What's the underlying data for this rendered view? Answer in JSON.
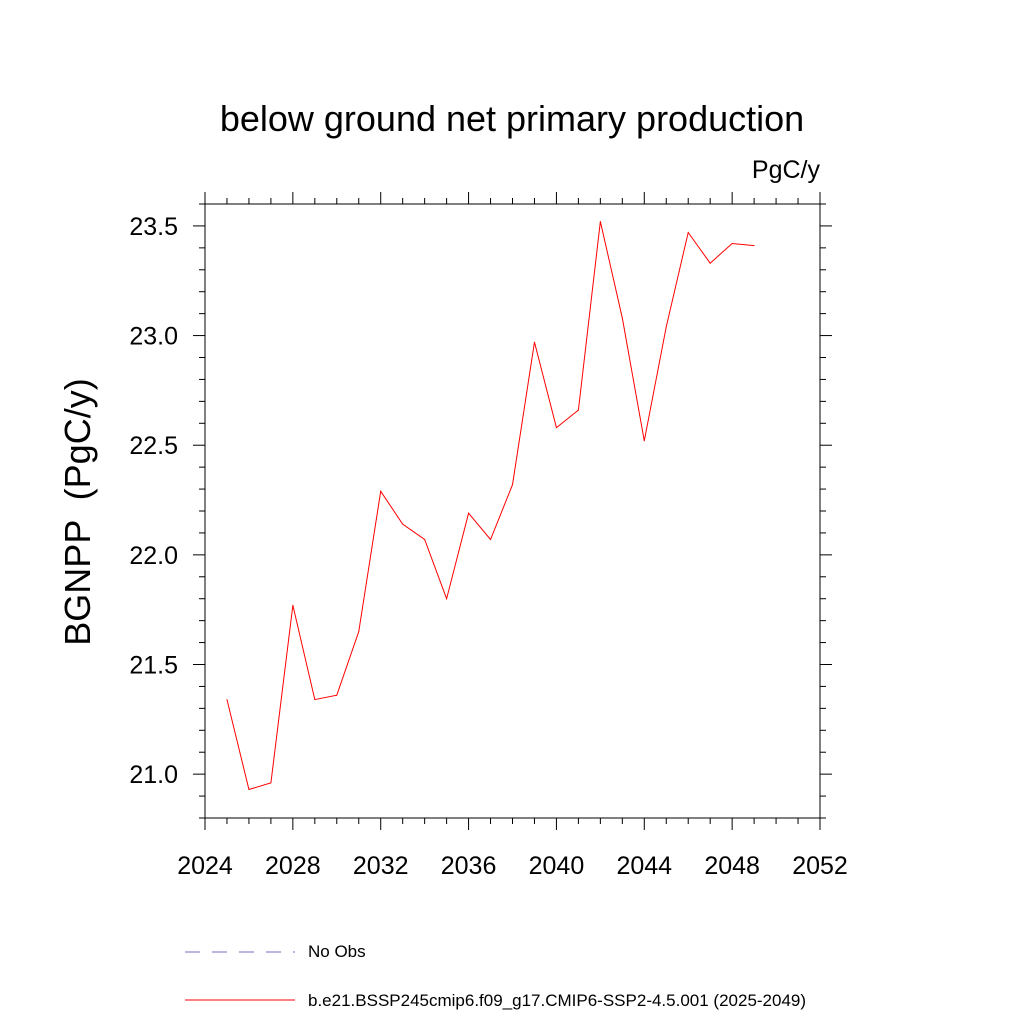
{
  "chart_data": {
    "type": "line",
    "title": "below ground net primary production",
    "units": "PgC/y",
    "ylabel": "BGNPP  (PgC/y)",
    "xlabel": "",
    "xlim": [
      2024,
      2052
    ],
    "ylim": [
      20.8,
      23.6
    ],
    "x_ticks": [
      2024,
      2028,
      2032,
      2036,
      2040,
      2044,
      2048,
      2052
    ],
    "y_ticks": [
      21.0,
      21.5,
      22.0,
      22.5,
      23.0,
      23.5
    ],
    "x_tick_labels": [
      "2024",
      "2028",
      "2032",
      "2036",
      "2040",
      "2044",
      "2048",
      "2052"
    ],
    "y_tick_labels": [
      "21.0",
      "21.5",
      "22.0",
      "22.5",
      "23.0",
      "23.5"
    ],
    "grid": false,
    "legend_position": "bottom",
    "series": [
      {
        "name": "b.e21.BSSP245cmip6.f09_g17.CMIP6-SSP2-4.5.001 (2025-2049)",
        "color": "#ff0000",
        "style": "solid",
        "x": [
          2025,
          2026,
          2027,
          2028,
          2029,
          2030,
          2031,
          2032,
          2033,
          2034,
          2035,
          2036,
          2037,
          2038,
          2039,
          2040,
          2041,
          2042,
          2043,
          2044,
          2045,
          2046,
          2047,
          2048,
          2049
        ],
        "y": [
          21.34,
          20.93,
          20.96,
          21.77,
          21.34,
          21.36,
          21.65,
          22.29,
          22.14,
          22.07,
          21.8,
          22.19,
          22.07,
          22.32,
          22.97,
          22.58,
          22.66,
          23.52,
          23.08,
          22.52,
          23.04,
          23.47,
          23.33,
          23.42,
          23.41
        ]
      }
    ],
    "legend": [
      {
        "label": "No Obs",
        "color": "#7b68c6",
        "style": "dashed"
      },
      {
        "label": "b.e21.BSSP245cmip6.f09_g17.CMIP6-SSP2-4.5.001 (2025-2049)",
        "color": "#ff0000",
        "style": "solid"
      }
    ]
  }
}
